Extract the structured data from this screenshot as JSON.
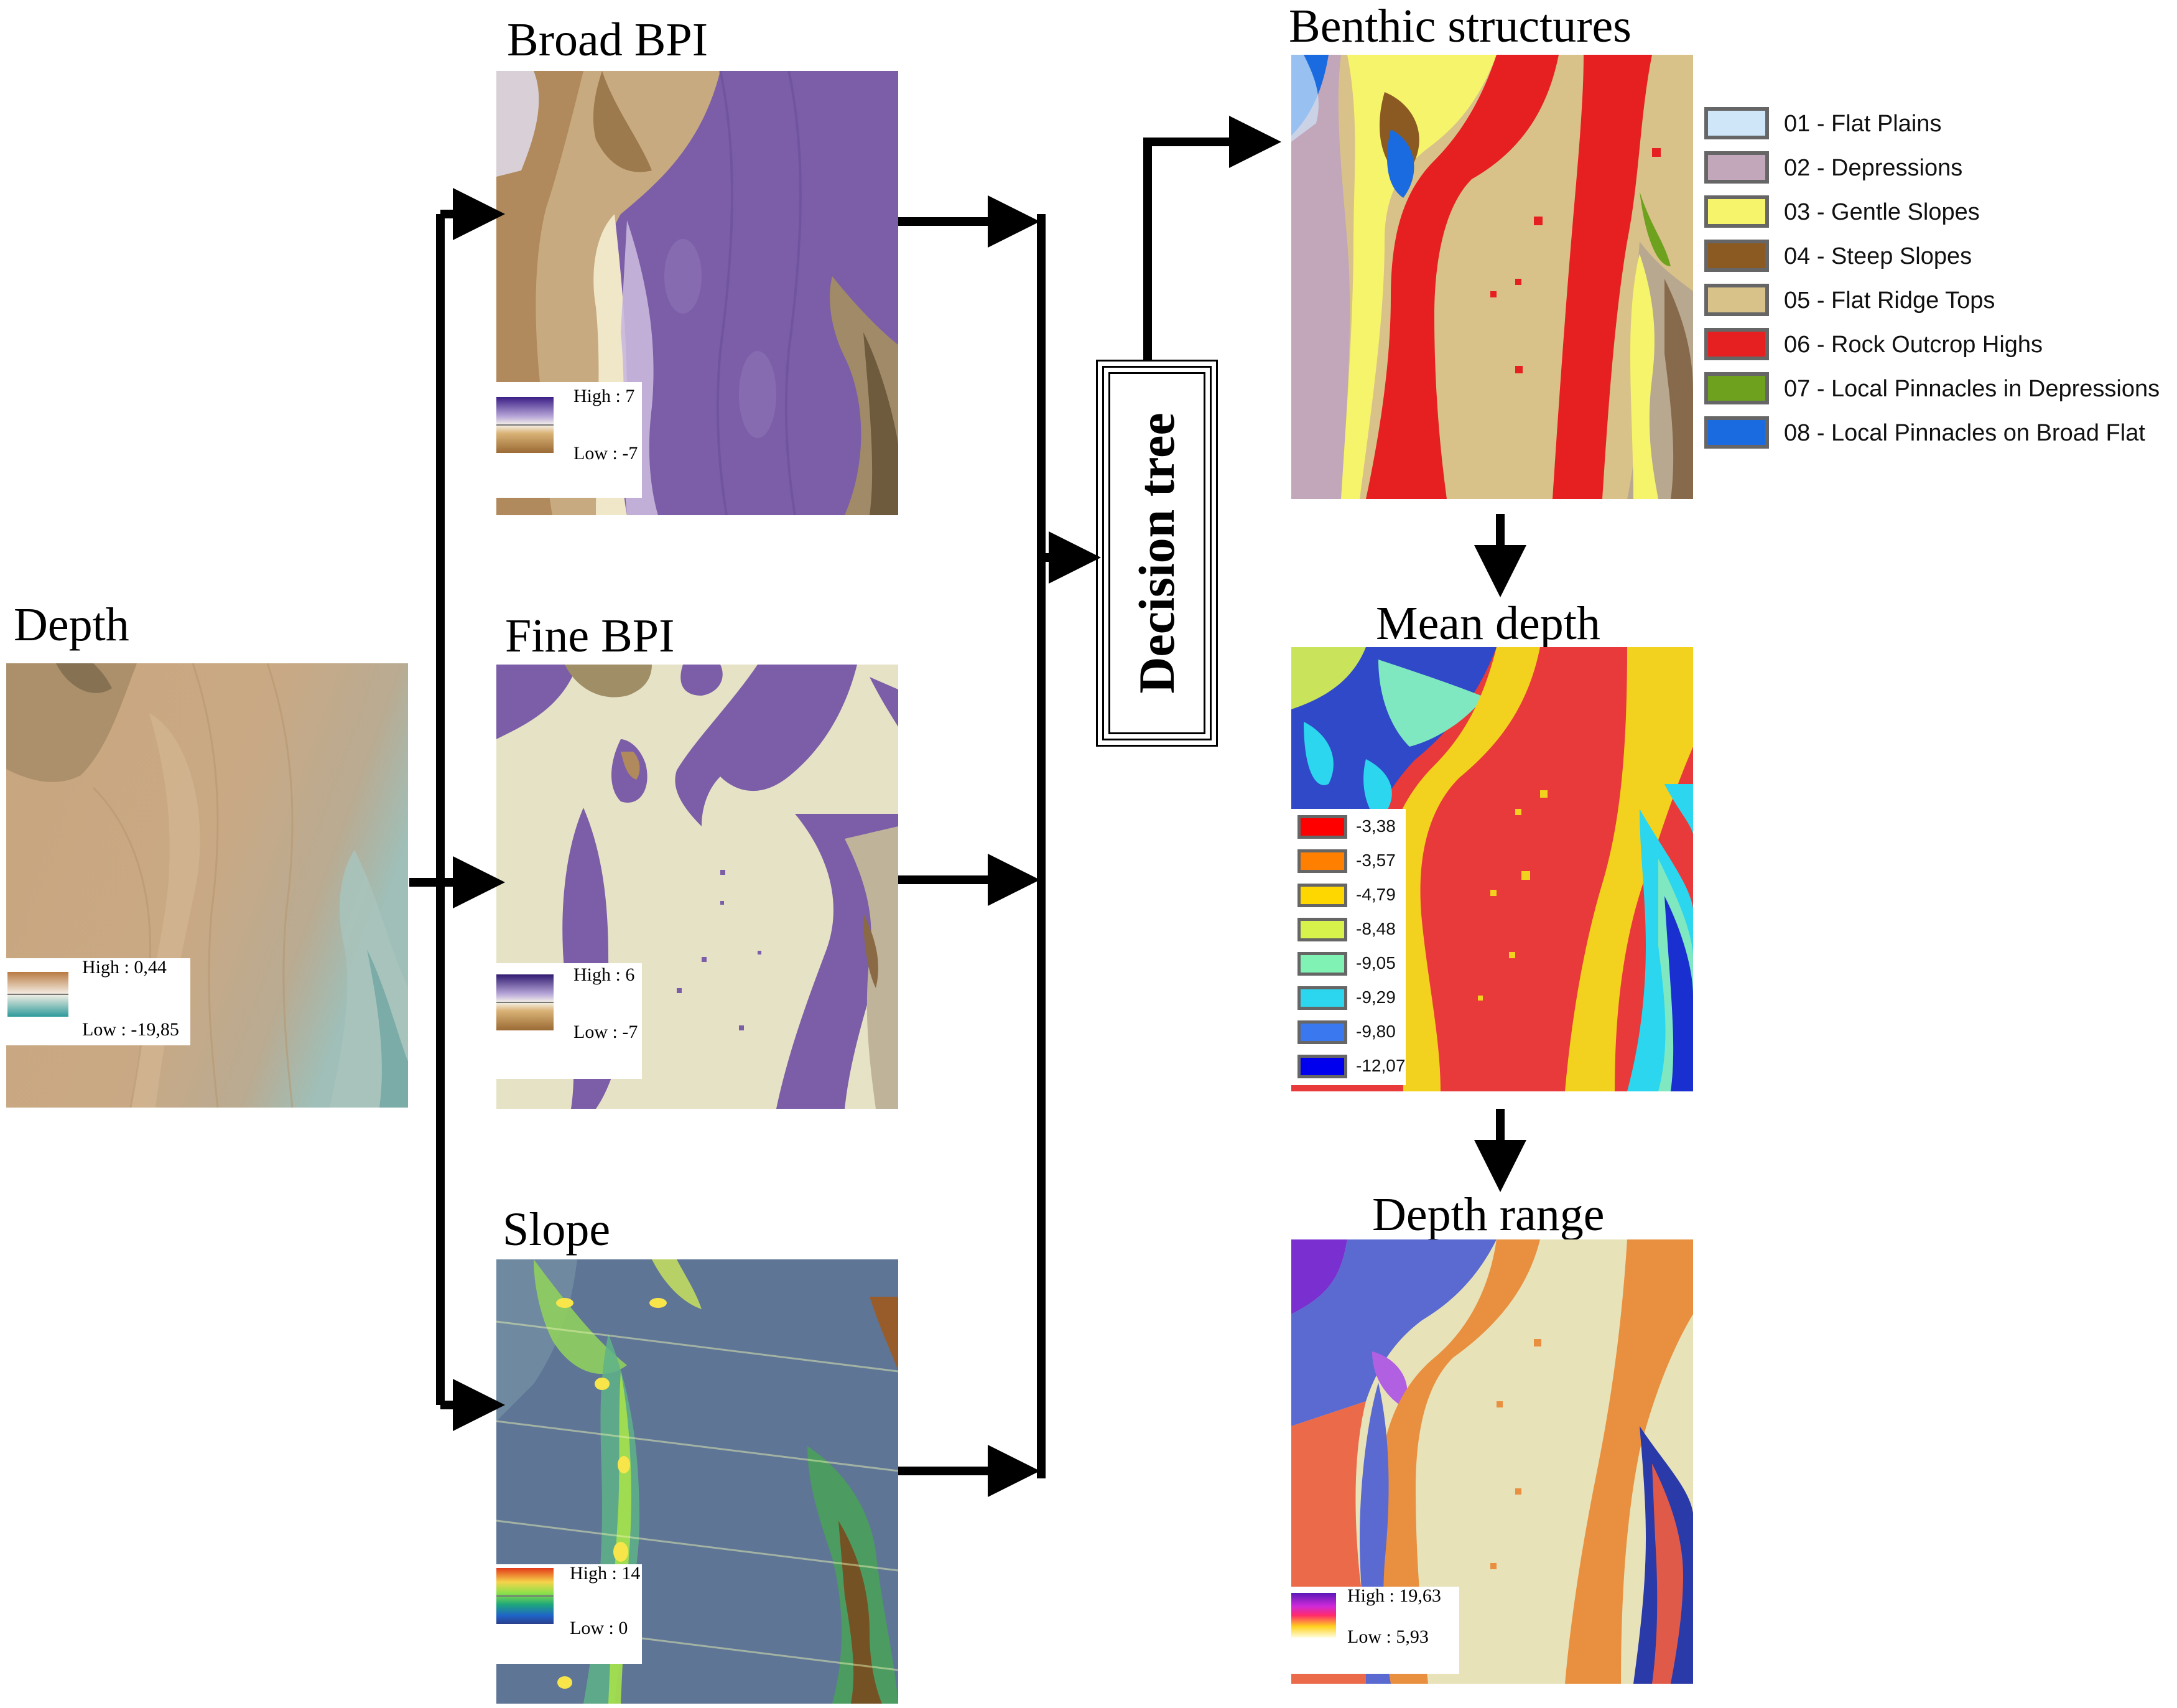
{
  "titles": {
    "depth": "Depth",
    "broad_bpi": "Broad BPI",
    "fine_bpi": "Fine BPI",
    "slope": "Slope",
    "benthic": "Benthic structures",
    "mean_depth": "Mean depth",
    "depth_range": "Depth range"
  },
  "decision_tree": "Decision tree",
  "legends": {
    "depth": {
      "high": "High : 0,44",
      "low": "Low : -19,85"
    },
    "broad_bpi": {
      "high": "High : 7",
      "low": "Low : -7"
    },
    "fine_bpi": {
      "high": "High : 6",
      "low": "Low : -7"
    },
    "slope": {
      "high": "High : 14",
      "low": "Low : 0"
    },
    "depth_range": {
      "high": "High : 19,63",
      "low": "Low : 5,93"
    }
  },
  "benthic_classes": [
    {
      "label": "01 - Flat Plains",
      "color": "#cfe6f8"
    },
    {
      "label": "02 - Depressions",
      "color": "#c2a6ba"
    },
    {
      "label": "03 - Gentle Slopes",
      "color": "#f6f46a"
    },
    {
      "label": "04 - Steep Slopes",
      "color": "#8a5a22"
    },
    {
      "label": "05 - Flat Ridge Tops",
      "color": "#d8c28a"
    },
    {
      "label": "06 - Rock Outcrop Highs",
      "color": "#e62020"
    },
    {
      "label": "07 - Local Pinnacles in Depressions",
      "color": "#6ea11e"
    },
    {
      "label": "08 - Local Pinnacles on Broad Flat",
      "color": "#1a6be0"
    }
  ],
  "mean_depth_classes": [
    {
      "label": "-3,38",
      "color": "#ff0000"
    },
    {
      "label": "-3,57",
      "color": "#ff7f00"
    },
    {
      "label": "-4,79",
      "color": "#ffd700"
    },
    {
      "label": "-8,48",
      "color": "#d7f24a"
    },
    {
      "label": "-9,05",
      "color": "#7ff2b4"
    },
    {
      "label": "-9,29",
      "color": "#2cd6ee"
    },
    {
      "label": "-9,80",
      "color": "#3a78f0"
    },
    {
      "label": "-12,07",
      "color": "#0000ee"
    }
  ]
}
